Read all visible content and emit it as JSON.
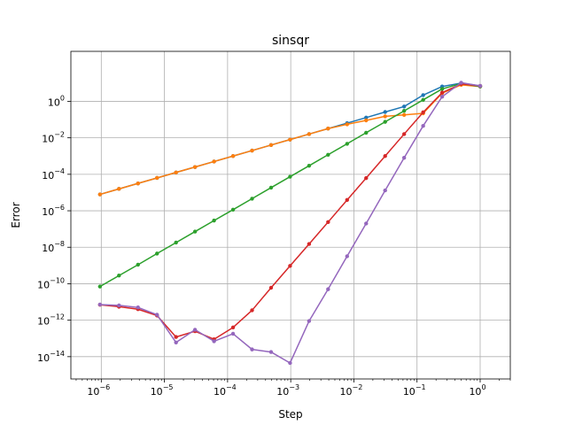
{
  "chart_data": {
    "type": "line",
    "title": "sinsqr",
    "xlabel": "Step",
    "ylabel": "Error",
    "xscale": "log",
    "yscale": "log",
    "xlim": [
      3.3e-07,
      3.0
    ],
    "ylim": [
      6e-16,
      550.0
    ],
    "grid": true,
    "legend": "none",
    "x_ticks": [
      {
        "base": "10",
        "exp": "−6",
        "value": 1e-06
      },
      {
        "base": "10",
        "exp": "−5",
        "value": 1e-05
      },
      {
        "base": "10",
        "exp": "−4",
        "value": 0.0001
      },
      {
        "base": "10",
        "exp": "−3",
        "value": 0.001
      },
      {
        "base": "10",
        "exp": "−2",
        "value": 0.01
      },
      {
        "base": "10",
        "exp": "−1",
        "value": 0.1
      },
      {
        "base": "10",
        "exp": "0",
        "value": 1
      }
    ],
    "y_ticks": [
      {
        "base": "10",
        "exp": "−14",
        "value": 1e-14
      },
      {
        "base": "10",
        "exp": "−12",
        "value": 1e-12
      },
      {
        "base": "10",
        "exp": "−10",
        "value": 1e-10
      },
      {
        "base": "10",
        "exp": "−8",
        "value": 1e-08
      },
      {
        "base": "10",
        "exp": "−6",
        "value": 1e-06
      },
      {
        "base": "10",
        "exp": "−4",
        "value": 0.0001
      },
      {
        "base": "10",
        "exp": "−2",
        "value": 0.01
      },
      {
        "base": "10",
        "exp": "0",
        "value": 1
      }
    ],
    "x": [
      9.537e-07,
      1.907e-06,
      3.815e-06,
      7.629e-06,
      1.526e-05,
      3.052e-05,
      6.104e-05,
      0.0001221,
      0.0002441,
      0.0004883,
      0.0009766,
      0.001953,
      0.003906,
      0.007813,
      0.01563,
      0.03125,
      0.0625,
      0.125,
      0.25,
      0.5,
      1.0
    ],
    "series": [
      {
        "color": "#1f77b4",
        "values": [
          7.9e-06,
          1.58e-05,
          3.16e-05,
          6.3e-05,
          0.000126,
          0.00025,
          0.0005,
          0.001,
          0.002,
          0.004,
          0.008,
          0.016,
          0.032,
          0.064,
          0.128,
          0.26,
          0.52,
          2.2,
          6.5,
          10.0,
          7.0
        ]
      },
      {
        "color": "#ff7f0e",
        "values": [
          7.9e-06,
          1.58e-05,
          3.16e-05,
          6.3e-05,
          0.000126,
          0.00025,
          0.0005,
          0.001,
          0.002,
          0.004,
          0.008,
          0.016,
          0.032,
          0.055,
          0.09,
          0.15,
          0.18,
          0.22,
          2.8,
          8.0,
          6.5
        ]
      },
      {
        "color": "#2ca02c",
        "values": [
          7e-11,
          2.8e-10,
          1.1e-09,
          4.5e-09,
          1.8e-08,
          7.2e-08,
          2.9e-07,
          1.15e-06,
          4.6e-06,
          1.85e-05,
          7.4e-05,
          0.000295,
          0.00118,
          0.0047,
          0.019,
          0.075,
          0.3,
          1.2,
          4.8,
          9.5,
          6.5
        ]
      },
      {
        "color": "#d62728",
        "values": [
          7e-12,
          5.5e-12,
          4e-12,
          1.8e-12,
          1.2e-13,
          2.5e-13,
          9e-14,
          4e-13,
          3.5e-12,
          6e-11,
          9.5e-10,
          1.5e-08,
          2.4e-07,
          3.9e-06,
          6.2e-05,
          0.001,
          0.016,
          0.25,
          3.0,
          9.0,
          7.0
        ]
      },
      {
        "color": "#9467bd",
        "values": [
          7.2e-12,
          6.5e-12,
          5e-12,
          2e-12,
          6e-14,
          3e-13,
          7e-14,
          1.8e-13,
          2.5e-14,
          1.8e-14,
          4.5e-15,
          9e-13,
          5e-11,
          3.2e-09,
          2e-07,
          1.3e-05,
          0.0008,
          0.045,
          1.8,
          10.5,
          7.0
        ]
      }
    ]
  }
}
